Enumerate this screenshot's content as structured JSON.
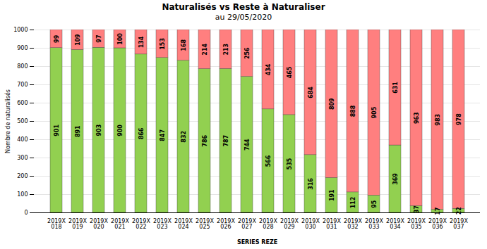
{
  "chart_data": {
    "type": "bar",
    "stacked": true,
    "title": "Naturalisés vs Reste à Naturaliser",
    "subtitle": "au 29/05/2020",
    "xlabel": "SERIES REZE",
    "ylabel": "Nombre de naturalisés",
    "categories": [
      "2019X\n018",
      "2019X\n019",
      "2019X\n020",
      "2019X\n021",
      "2019X\n022",
      "2019X\n023",
      "2019X\n024",
      "2019X\n025",
      "2019X\n026",
      "2019X\n027",
      "2019X\n028",
      "2019X\n029",
      "2019X\n030",
      "2019X\n031",
      "2019X\n032",
      "2019X\n033",
      "2019X\n034",
      "2019X\n035",
      "2019X\n036",
      "2019X\n037"
    ],
    "series": [
      {
        "color": "#92D050",
        "values": [
          901,
          891,
          903,
          900,
          866,
          847,
          832,
          786,
          787,
          744,
          566,
          535,
          316,
          191,
          112,
          95,
          369,
          37,
          17,
          22
        ]
      },
      {
        "color": "#FF7F7F",
        "values": [
          99,
          109,
          97,
          100,
          134,
          153,
          168,
          214,
          213,
          256,
          434,
          465,
          684,
          809,
          888,
          905,
          631,
          963,
          983,
          978
        ]
      }
    ],
    "ylim": [
      0,
      1000
    ],
    "yticks": [
      0,
      100,
      200,
      300,
      400,
      500,
      600,
      700,
      800,
      900,
      1000
    ],
    "grid": true,
    "data_labels": true
  }
}
